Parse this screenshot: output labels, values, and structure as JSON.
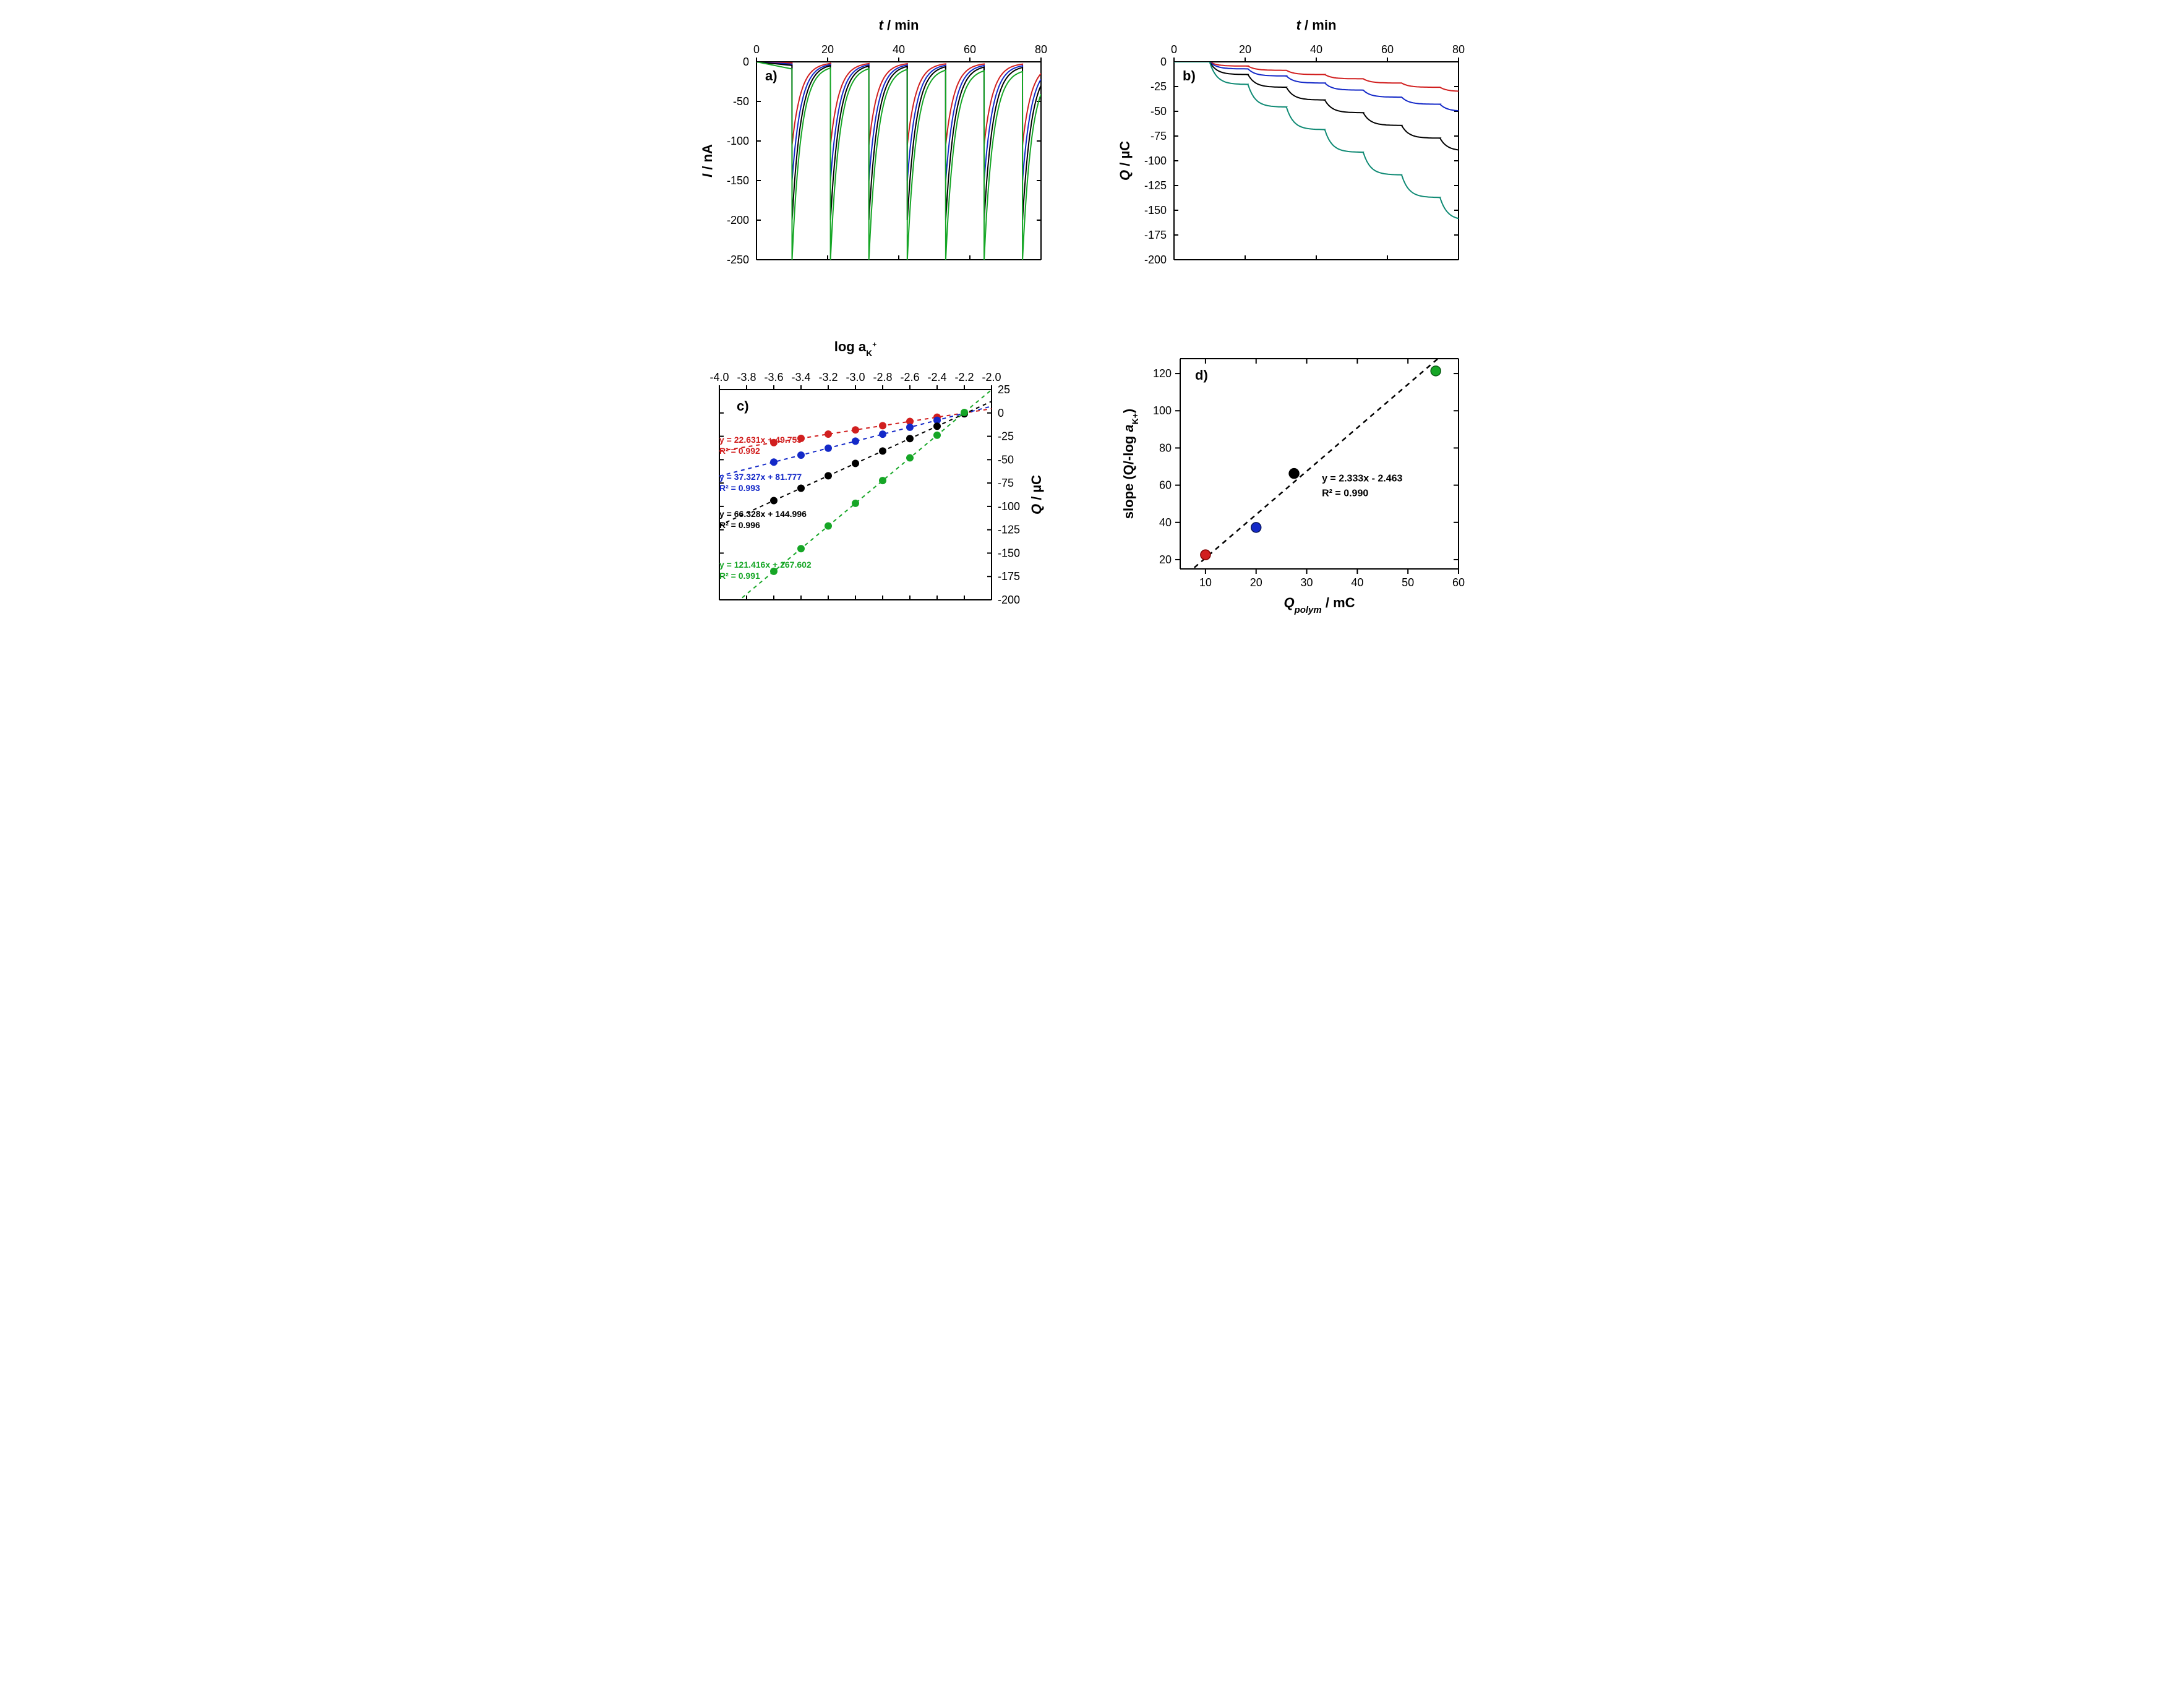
{
  "colors": {
    "red": "#d11f1f",
    "blue": "#1429c8",
    "black": "#000000",
    "green": "#16a626",
    "teal": "#0f8a74",
    "bg": "#ffffff"
  },
  "panel_a": {
    "type": "line",
    "label": "a)",
    "x_title": "t / min",
    "y_title": "I / nA",
    "xlim": [
      0,
      80
    ],
    "xtick_step": 20,
    "ylim": [
      -250,
      0
    ],
    "ytick_step": 50,
    "peak_times": [
      10,
      20.8,
      31.6,
      42.4,
      53.2,
      64,
      74.8
    ],
    "period": 10.8,
    "series": [
      {
        "color_key": "red",
        "peak": -105,
        "baseline_final": -5
      },
      {
        "color_key": "blue",
        "peak": -150,
        "baseline_final": -10
      },
      {
        "color_key": "black",
        "peak": -200,
        "baseline_final": -15
      },
      {
        "color_key": "green",
        "peak": -250,
        "baseline_final": -30
      }
    ],
    "line_width": 2
  },
  "panel_b": {
    "type": "line",
    "label": "b)",
    "x_title": "t / min",
    "y_title": "Q / µC",
    "xlim": [
      0,
      80
    ],
    "xtick_step": 20,
    "ylim": [
      -200,
      0
    ],
    "ytick_step": 25,
    "step_times": [
      10,
      20.8,
      31.6,
      42.4,
      53.2,
      64,
      74.8
    ],
    "series": [
      {
        "color_key": "red",
        "final": -30
      },
      {
        "color_key": "blue",
        "final": -50
      },
      {
        "color_key": "black",
        "final": -90
      },
      {
        "color_key": "teal",
        "final": -160
      }
    ],
    "line_width": 2
  },
  "panel_c": {
    "type": "scatter",
    "label": "c)",
    "x_title": "log a_K+",
    "y_title": "Q / µC",
    "xlim": [
      -4.0,
      -2.0
    ],
    "xtick_step": 0.2,
    "ylim": [
      -200,
      25
    ],
    "ytick_step": 25,
    "x_points": [
      -3.6,
      -3.4,
      -3.2,
      -3.0,
      -2.8,
      -2.6,
      -2.4,
      -2.2
    ],
    "series": [
      {
        "color_key": "red",
        "slope": 22.631,
        "intercept": 49.753,
        "r2": 0.992,
        "eq_text": "y = 22.631x + 49.753",
        "r2_text": "R² = 0.992"
      },
      {
        "color_key": "blue",
        "slope": 37.327,
        "intercept": 81.777,
        "r2": 0.993,
        "eq_text": "y = 37.327x + 81.777",
        "r2_text": "R² = 0.993"
      },
      {
        "color_key": "black",
        "slope": 66.328,
        "intercept": 144.996,
        "r2": 0.996,
        "eq_text": "y = 66.328x + 144.996",
        "r2_text": "R² = 0.996"
      },
      {
        "color_key": "green",
        "slope": 121.416,
        "intercept": 267.602,
        "r2": 0.991,
        "eq_text": "y = 121.416x + 267.602",
        "r2_text": "R² = 0.991"
      }
    ],
    "marker_size": 6,
    "line_width": 2,
    "dash": "6,6"
  },
  "panel_d": {
    "type": "scatter",
    "label": "d)",
    "x_title": "Q_polym / mC",
    "y_title": "slope (Q/-log a_K+)",
    "xlim": [
      5,
      60
    ],
    "xticks": [
      10,
      20,
      30,
      40,
      50,
      60
    ],
    "ylim": [
      15,
      128
    ],
    "yticks": [
      20,
      40,
      60,
      80,
      100,
      120
    ],
    "points": [
      {
        "x": 10,
        "y": 22.6,
        "color_key": "red",
        "edge": "#800000"
      },
      {
        "x": 20,
        "y": 37.3,
        "color_key": "blue",
        "edge": "#08165a"
      },
      {
        "x": 27.5,
        "y": 66.3,
        "color_key": "black",
        "edge": "#000000"
      },
      {
        "x": 55.5,
        "y": 121.4,
        "color_key": "green",
        "edge": "#0a5a14"
      }
    ],
    "fit": {
      "slope": 2.333,
      "intercept": -2.463,
      "r2": 0.99,
      "eq_text": "y = 2.333x - 2.463",
      "r2_text": "R² = 0.990"
    },
    "marker_size": 8,
    "line_width": 2.5,
    "dash": "8,7"
  },
  "typography": {
    "tick_fontsize": 18,
    "axis_fontsize": 22,
    "axis_fontweight": "bold",
    "eq_fontsize": 14
  }
}
